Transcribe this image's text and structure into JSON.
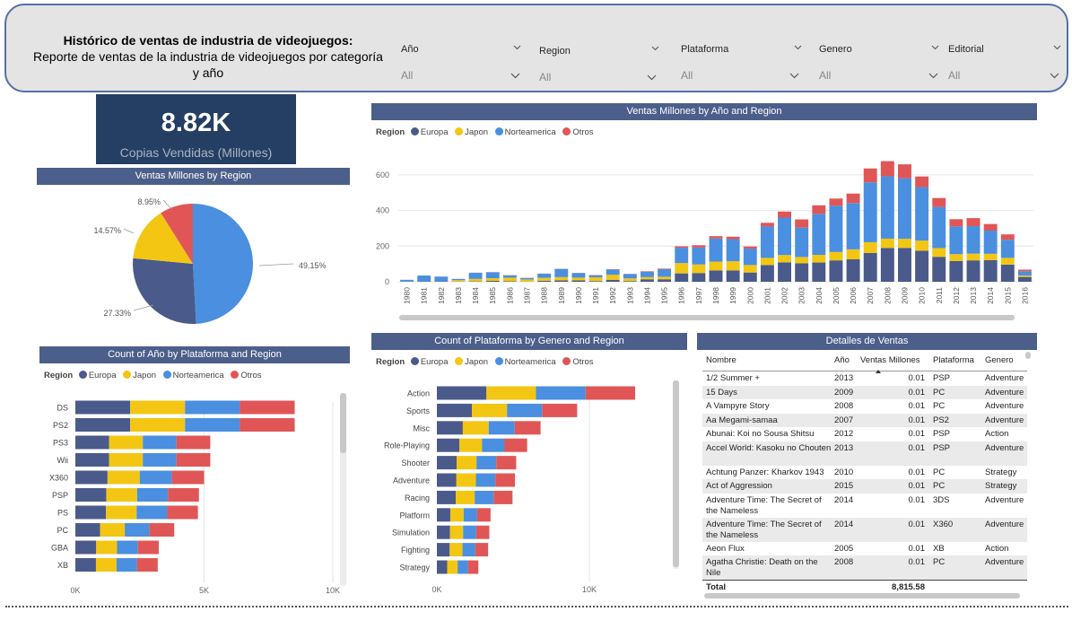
{
  "header": {
    "title": "Histórico de ventas de industria de videojuegos:",
    "subtitle": "Reporte de ventas de la industria de videojuegos por categoría y año"
  },
  "filters": [
    {
      "label": "Año",
      "value": "All"
    },
    {
      "label": "Region",
      "value": "All"
    },
    {
      "label": "Plataforma",
      "value": "All"
    },
    {
      "label": "Genero",
      "value": "All"
    },
    {
      "label": "Editorial",
      "value": "All"
    }
  ],
  "kpi": {
    "value": "8.82K",
    "label": "Copias Vendidas (Millones)"
  },
  "colors": {
    "Europa": "#4a5a8a",
    "Japon": "#f2c613",
    "Norteamerica": "#4a8fe0",
    "Otros": "#e05656"
  },
  "legend": {
    "title": "Region",
    "items": [
      "Europa",
      "Japon",
      "Norteamerica",
      "Otros"
    ]
  },
  "pie": {
    "title": "Ventas Millones by Region",
    "chart_data": {
      "type": "pie",
      "labels": [
        "Norteamerica",
        "Europa",
        "Japon",
        "Otros"
      ],
      "values": [
        49.15,
        27.33,
        14.57,
        8.95
      ],
      "value_labels": [
        "49.15%",
        "27.33%",
        "14.57%",
        "8.95%"
      ]
    }
  },
  "year_chart": {
    "title": "Ventas Millones by Año and Region",
    "chart_data": {
      "type": "bar",
      "stacked": true,
      "categories": [
        "1980",
        "1981",
        "1982",
        "1983",
        "1984",
        "1985",
        "1986",
        "1987",
        "1988",
        "1989",
        "1990",
        "1991",
        "1992",
        "1993",
        "1994",
        "1995",
        "1996",
        "1997",
        "1998",
        "1999",
        "2000",
        "2001",
        "2002",
        "2003",
        "2004",
        "2005",
        "2006",
        "2007",
        "2008",
        "2009",
        "2010",
        "2011",
        "2012",
        "2013",
        "2014",
        "2015",
        "2016"
      ],
      "series": [
        {
          "name": "Europa",
          "values": [
            1,
            2,
            2,
            1,
            2,
            5,
            3,
            1,
            6,
            8,
            8,
            4,
            11,
            4,
            14,
            14,
            47,
            49,
            63,
            63,
            52,
            94,
            109,
            104,
            108,
            120,
            126,
            162,
            190,
            190,
            174,
            140,
            117,
            120,
            121,
            96,
            27
          ]
        },
        {
          "name": "Japon",
          "values": [
            0,
            0,
            0,
            8,
            14,
            15,
            20,
            12,
            16,
            18,
            15,
            21,
            28,
            15,
            12,
            14,
            58,
            48,
            50,
            52,
            42,
            40,
            41,
            35,
            43,
            47,
            56,
            60,
            52,
            51,
            57,
            49,
            38,
            38,
            36,
            38,
            8
          ]
        },
        {
          "name": "Norteamerica",
          "values": [
            10,
            33,
            27,
            7,
            34,
            33,
            13,
            8,
            23,
            46,
            26,
            12,
            29,
            24,
            30,
            43,
            86,
            95,
            130,
            124,
            92,
            176,
            210,
            165,
            230,
            260,
            260,
            336,
            350,
            340,
            300,
            231,
            156,
            154,
            130,
            102,
            24
          ]
        },
        {
          "name": "Otros",
          "values": [
            0,
            0,
            0,
            0,
            1,
            1,
            1,
            1,
            1,
            1,
            1,
            1,
            2,
            1,
            3,
            3,
            8,
            13,
            13,
            14,
            12,
            21,
            34,
            46,
            48,
            40,
            53,
            78,
            85,
            78,
            60,
            50,
            40,
            45,
            37,
            30,
            9
          ]
        }
      ],
      "ylim": [
        0,
        700
      ],
      "yticks": [
        "0",
        "200",
        "400",
        "600"
      ]
    }
  },
  "platform_chart": {
    "title": "Count of Año by Plataforma and Region",
    "chart_data": {
      "type": "bar",
      "orientation": "horizontal",
      "stacked": true,
      "categories": [
        "DS",
        "PS2",
        "PS3",
        "Wii",
        "X360",
        "PSP",
        "PS",
        "PC",
        "GBA",
        "XB"
      ],
      "series": [
        {
          "name": "Europa",
          "values": [
            2130,
            2130,
            1310,
            1310,
            1250,
            1200,
            1190,
            960,
            810,
            800
          ]
        },
        {
          "name": "Japon",
          "values": [
            2130,
            2130,
            1310,
            1310,
            1250,
            1200,
            1190,
            960,
            810,
            800
          ]
        },
        {
          "name": "Norteamerica",
          "values": [
            2130,
            2130,
            1310,
            1310,
            1250,
            1200,
            1190,
            960,
            810,
            800
          ]
        },
        {
          "name": "Otros",
          "values": [
            2130,
            2130,
            1310,
            1310,
            1250,
            1200,
            1190,
            960,
            810,
            800
          ]
        }
      ],
      "xlim": [
        0,
        10000
      ],
      "xticks": [
        "0K",
        "5K",
        "10K"
      ]
    }
  },
  "genre_chart": {
    "title": "Count of Plataforma by Genero and Region",
    "chart_data": {
      "type": "bar",
      "orientation": "horizontal",
      "stacked": true,
      "categories": [
        "Action",
        "Sports",
        "Misc",
        "Role-Playing",
        "Shooter",
        "Adventure",
        "Racing",
        "Platform",
        "Simulation",
        "Fighting",
        "Strategy"
      ],
      "series": [
        {
          "name": "Europa",
          "values": [
            3250,
            2300,
            1700,
            1480,
            1300,
            1280,
            1240,
            880,
            860,
            840,
            680
          ]
        },
        {
          "name": "Japon",
          "values": [
            3250,
            2300,
            1700,
            1480,
            1300,
            1280,
            1240,
            880,
            860,
            840,
            680
          ]
        },
        {
          "name": "Norteamerica",
          "values": [
            3250,
            2300,
            1700,
            1480,
            1300,
            1280,
            1240,
            880,
            860,
            840,
            680
          ]
        },
        {
          "name": "Otros",
          "values": [
            3250,
            2300,
            1700,
            1480,
            1300,
            1280,
            1240,
            880,
            860,
            840,
            680
          ]
        }
      ],
      "xlim": [
        0,
        15000
      ],
      "xticks": [
        "0K",
        "10K"
      ]
    }
  },
  "table": {
    "title": "Detalles de Ventas",
    "columns": [
      "Nombre",
      "Año",
      "Ventas Millones",
      "Plataforma",
      "Genero"
    ],
    "rows": [
      {
        "nombre": "1/2 Summer +",
        "anio": "2013",
        "ventas": "0.01",
        "plataforma": "PSP",
        "genero": "Adventure"
      },
      {
        "nombre": "15 Days",
        "anio": "2009",
        "ventas": "0.01",
        "plataforma": "PC",
        "genero": "Adventure"
      },
      {
        "nombre": "A Vampyre Story",
        "anio": "2008",
        "ventas": "0.01",
        "plataforma": "PC",
        "genero": "Adventure"
      },
      {
        "nombre": "Aa Megami-samaa",
        "anio": "2007",
        "ventas": "0.01",
        "plataforma": "PS2",
        "genero": "Adventure"
      },
      {
        "nombre": "Abunai: Koi no Sousa Shitsu",
        "anio": "2012",
        "ventas": "0.01",
        "plataforma": "PSP",
        "genero": "Action"
      },
      {
        "nombre": "Accel World: Kasoku no Chouten",
        "anio": "2013",
        "ventas": "0.01",
        "plataforma": "PSP",
        "genero": "Adventure"
      },
      {
        "nombre": "Achtung Panzer: Kharkov 1943",
        "anio": "2010",
        "ventas": "0.01",
        "plataforma": "PC",
        "genero": "Strategy"
      },
      {
        "nombre": "Act of Aggression",
        "anio": "2015",
        "ventas": "0.01",
        "plataforma": "PC",
        "genero": "Strategy"
      },
      {
        "nombre": "Adventure Time: The Secret of the Nameless",
        "anio": "2014",
        "ventas": "0.01",
        "plataforma": "3DS",
        "genero": "Adventure"
      },
      {
        "nombre": "Adventure Time: The Secret of the Nameless",
        "anio": "2014",
        "ventas": "0.01",
        "plataforma": "X360",
        "genero": "Adventure"
      },
      {
        "nombre": "Aeon Flux",
        "anio": "2005",
        "ventas": "0.01",
        "plataforma": "XB",
        "genero": "Action"
      },
      {
        "nombre": "Agatha Christie: Death on the Nile",
        "anio": "2008",
        "ventas": "0.01",
        "plataforma": "PC",
        "genero": "Adventure"
      }
    ],
    "total_label": "Total",
    "total_value": "8,815.58"
  }
}
